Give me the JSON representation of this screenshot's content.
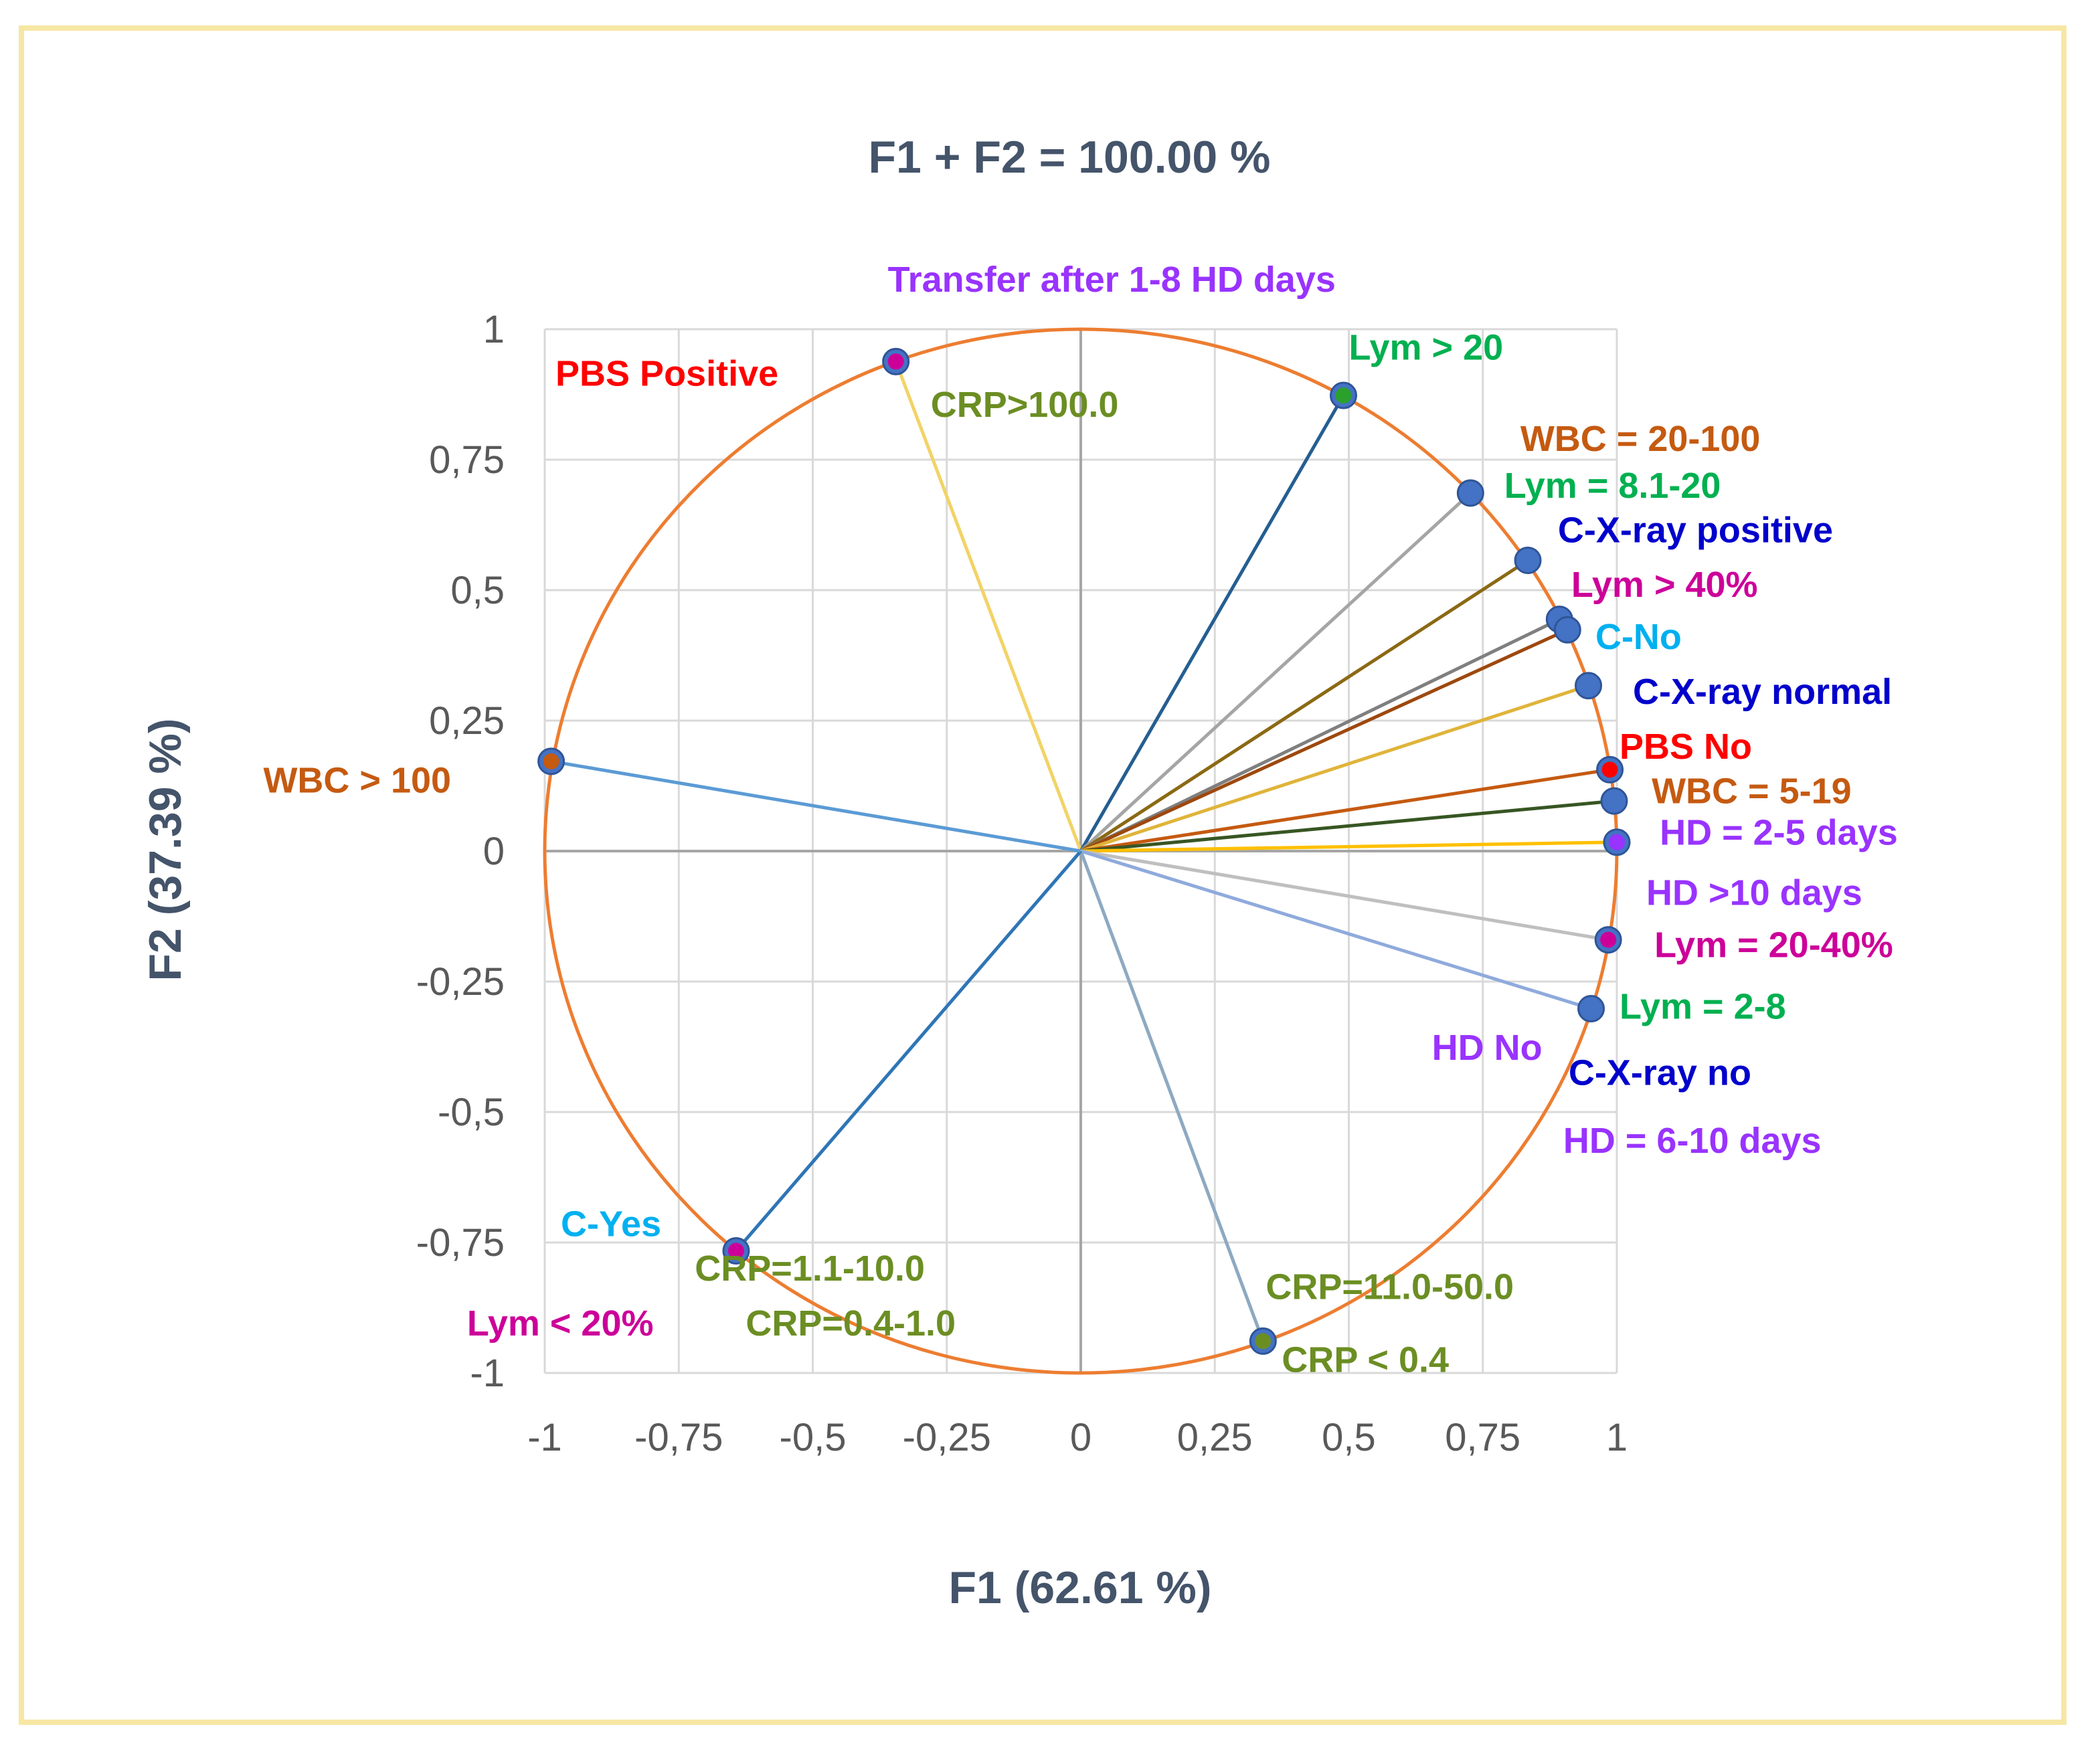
{
  "chart_data": {
    "type": "scatter",
    "subtype": "correlation-circle",
    "title": "F1 + F2 = 100.00 %",
    "xlabel": "F1 (62.61 %)",
    "ylabel": "F2 (37.39 %)",
    "xlim": [
      -1,
      1
    ],
    "ylim": [
      -1,
      1
    ],
    "grid": true,
    "x_ticks": [
      "-1",
      "-0,75",
      "-0,5",
      "-0,25",
      "0",
      "0,25",
      "0,5",
      "0,75",
      "1"
    ],
    "y_ticks": [
      "1",
      "0,75",
      "0,5",
      "0,25",
      "0",
      "-0,25",
      "-0,5",
      "-0,75",
      "-1"
    ],
    "circle_color": "#ed7d31",
    "vectors": [
      {
        "x": -0.345,
        "y": 0.938,
        "line": "#f2d366",
        "dot": "#cc0099"
      },
      {
        "x": 0.49,
        "y": 0.873,
        "line": "#255e91",
        "dot": "#2ca02c"
      },
      {
        "x": 0.727,
        "y": 0.686,
        "line": "#a5a5a5",
        "dot": "#4472c4"
      },
      {
        "x": 0.834,
        "y": 0.557,
        "line": "#8b6914",
        "dot": "#4472c4"
      },
      {
        "x": 0.893,
        "y": 0.444,
        "line": "#7f7f7f",
        "dot": "#4472c4"
      },
      {
        "x": 0.908,
        "y": 0.424,
        "line": "#9e480e",
        "dot": "#4472c4"
      },
      {
        "x": 0.947,
        "y": 0.317,
        "line": "#e0b43a",
        "dot": "#4472c4"
      },
      {
        "x": 0.987,
        "y": 0.156,
        "line": "#c55a11",
        "dot": "#ff0000"
      },
      {
        "x": 0.995,
        "y": 0.096,
        "line": "#375623",
        "dot": "#4472c4"
      },
      {
        "x": 1.0,
        "y": 0.017,
        "line": "#ffc000",
        "dot": "#9933ff"
      },
      {
        "x": 0.984,
        "y": -0.17,
        "line": "#bfbfbf",
        "dot": "#cc0099"
      },
      {
        "x": 0.952,
        "y": -0.302,
        "line": "#8faadc",
        "dot": "#4472c4"
      },
      {
        "x": 0.34,
        "y": -0.939,
        "line": "#8ea9c1",
        "dot": "#6b8e23"
      },
      {
        "x": -0.643,
        "y": -0.766,
        "line": "#2e75b6",
        "dot": "#cc0099"
      },
      {
        "x": -0.988,
        "y": 0.172,
        "line": "#5b9bd5",
        "dot": "#c55a11"
      }
    ],
    "labels": [
      {
        "text": "Transfer after 1-8 HD days",
        "color": "#9933ff",
        "x": -0.36,
        "y": 1.095
      },
      {
        "text": "PBS Positive",
        "color": "#ff0000",
        "x": -0.98,
        "y": 0.915
      },
      {
        "text": "CRP>100.0",
        "color": "#6b8e23",
        "x": -0.28,
        "y": 0.855
      },
      {
        "text": "Lym > 20",
        "color": "#00b050",
        "x": 0.5,
        "y": 0.965
      },
      {
        "text": "WBC = 20-100",
        "color": "#c55a11",
        "x": 0.82,
        "y": 0.79
      },
      {
        "text": "Lym = 8.1-20",
        "color": "#00b050",
        "x": 0.79,
        "y": 0.7
      },
      {
        "text": "C-X-ray positive",
        "color": "#0000cc",
        "x": 0.89,
        "y": 0.615
      },
      {
        "text": "Lym > 40%",
        "color": "#cc0099",
        "x": 0.915,
        "y": 0.51
      },
      {
        "text": "C-No",
        "color": "#00b0f0",
        "x": 0.96,
        "y": 0.41
      },
      {
        "text": "C-X-ray normal",
        "color": "#0000cc",
        "x": 1.03,
        "y": 0.305
      },
      {
        "text": "PBS No",
        "color": "#ff0000",
        "x": 1.005,
        "y": 0.2
      },
      {
        "text": "WBC = 5-19",
        "color": "#c55a11",
        "x": 1.065,
        "y": 0.115
      },
      {
        "text": "HD = 2-5 days",
        "color": "#9933ff",
        "x": 1.08,
        "y": 0.035
      },
      {
        "text": "HD >10 days",
        "color": "#9933ff",
        "x": 1.055,
        "y": -0.08
      },
      {
        "text": "Lym = 20-40%",
        "color": "#cc0099",
        "x": 1.07,
        "y": -0.18
      },
      {
        "text": "Lym = 2-8",
        "color": "#00b050",
        "x": 1.005,
        "y": -0.298
      },
      {
        "text": "HD No",
        "color": "#9933ff",
        "x": 0.655,
        "y": -0.377
      },
      {
        "text": "C-X-ray no",
        "color": "#0000cc",
        "x": 0.91,
        "y": -0.425
      },
      {
        "text": "HD = 6-10 days",
        "color": "#9933ff",
        "x": 0.9,
        "y": -0.555
      },
      {
        "text": "C-Yes",
        "color": "#00b0f0",
        "x": -0.97,
        "y": -0.715
      },
      {
        "text": "CRP=1.1-10.0",
        "color": "#6b8e23",
        "x": -0.72,
        "y": -0.8
      },
      {
        "text": "CRP=11.0-50.0",
        "color": "#6b8e23",
        "x": 0.345,
        "y": -0.835
      },
      {
        "text": "Lym < 20%",
        "color": "#cc0099",
        "x": -1.145,
        "y": -0.905
      },
      {
        "text": "CRP=0.4-1.0",
        "color": "#6b8e23",
        "x": -0.625,
        "y": -0.905
      },
      {
        "text": "CRP < 0.4",
        "color": "#6b8e23",
        "x": 0.375,
        "y": -0.975
      },
      {
        "text": "WBC > 100",
        "color": "#c55a11",
        "x": -1.525,
        "y": 0.135
      }
    ]
  }
}
